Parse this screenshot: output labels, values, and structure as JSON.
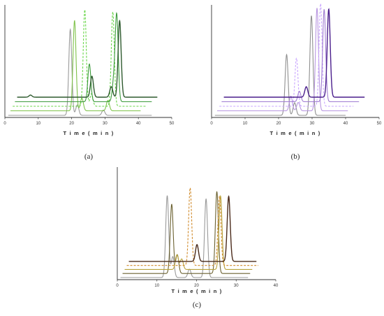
{
  "chart_data": [
    {
      "type": "line",
      "panel_label": "(a)",
      "xlabel": "T i m e  ( m i n )",
      "xlim": [
        0,
        50
      ],
      "x_ticks": [
        0,
        10,
        20,
        30,
        40,
        50
      ],
      "series": [
        {
          "color": "#9a9a9a",
          "dashed": false,
          "offset": 0.0,
          "x_end": 44,
          "peaks": [
            [
              19.6,
              0.82
            ],
            [
              21.7,
              0.1
            ],
            [
              29.5,
              0.05
            ]
          ]
        },
        {
          "color": "#7fc24a",
          "dashed": false,
          "offset": 0.045,
          "x_end": 40,
          "peaks": [
            [
              20.2,
              0.86
            ],
            [
              22.4,
              0.12
            ],
            [
              30.2,
              0.1
            ]
          ]
        },
        {
          "color": "#6ad64a",
          "dashed": true,
          "offset": 0.09,
          "x_end": 41,
          "peaks": [
            [
              22.6,
              0.92
            ],
            [
              24.6,
              0.12
            ],
            [
              31.0,
              0.9
            ]
          ]
        },
        {
          "color": "#3c9a3c",
          "dashed": false,
          "offset": 0.135,
          "x_end": 42,
          "peaks": [
            [
              23.3,
              0.36
            ],
            [
              30.6,
              0.18
            ],
            [
              31.5,
              0.82
            ]
          ]
        },
        {
          "color": "#2e5a2e",
          "dashed": false,
          "offset": 0.18,
          "x_end": 43,
          "peaks": [
            [
              5.0,
              0.02
            ],
            [
              23.4,
              0.2
            ],
            [
              29.2,
              0.1
            ],
            [
              31.7,
              0.73
            ]
          ]
        }
      ]
    },
    {
      "type": "line",
      "panel_label": "(b)",
      "xlabel": "T i m e  ( m i n )",
      "xlim": [
        0,
        50
      ],
      "x_ticks": [
        0,
        10,
        20,
        30,
        40,
        50
      ],
      "series": [
        {
          "color": "#8f8f8f",
          "dashed": false,
          "offset": 0.0,
          "x_end": 40,
          "peaks": [
            [
              22.4,
              0.58
            ],
            [
              24.8,
              0.12
            ],
            [
              29.8,
              0.95
            ]
          ]
        },
        {
          "color": "#b896e0",
          "dashed": false,
          "offset": 0.045,
          "x_end": 40,
          "peaks": [
            [
              23.0,
              0.14
            ],
            [
              25.2,
              0.08
            ],
            [
              30.8,
              0.98
            ]
          ]
        },
        {
          "color": "#c9a6ff",
          "dashed": true,
          "offset": 0.09,
          "x_end": 41,
          "peaks": [
            [
              24.0,
              0.46
            ],
            [
              31.2,
              0.98
            ]
          ]
        },
        {
          "color": "#a07cd2",
          "dashed": false,
          "offset": 0.135,
          "x_end": 42,
          "peaks": [
            [
              24.2,
              0.1
            ],
            [
              31.6,
              0.88
            ]
          ]
        },
        {
          "color": "#4a1e8c",
          "dashed": false,
          "offset": 0.18,
          "x_end": 43,
          "peaks": [
            [
              25.6,
              0.1
            ],
            [
              32.3,
              0.84
            ]
          ]
        }
      ]
    },
    {
      "type": "line",
      "panel_label": "(c)",
      "xlabel": "T i m e  ( m i n )",
      "xlim": [
        0,
        40
      ],
      "x_ticks": [
        0,
        10,
        20,
        30,
        40
      ],
      "series": [
        {
          "color": "#9a9a9a",
          "dashed": false,
          "offset": 0.0,
          "x_end": 33,
          "peaks": [
            [
              12.6,
              0.78
            ],
            [
              14.0,
              0.2
            ],
            [
              18.2,
              0.08
            ],
            [
              22.4,
              0.75
            ]
          ]
        },
        {
          "color": "#6b6130",
          "dashed": false,
          "offset": 0.04,
          "x_end": 33,
          "peaks": [
            [
              13.2,
              0.66
            ],
            [
              14.6,
              0.18
            ],
            [
              24.6,
              0.78
            ]
          ]
        },
        {
          "color": "#b8a23a",
          "dashed": false,
          "offset": 0.08,
          "x_end": 33,
          "peaks": [
            [
              14.0,
              0.14
            ],
            [
              15.2,
              0.1
            ],
            [
              25.0,
              0.7
            ]
          ]
        },
        {
          "color": "#d08a2a",
          "dashed": true,
          "offset": 0.12,
          "x_end": 34,
          "peaks": [
            [
              16.8,
              0.74
            ],
            [
              24.2,
              0.66
            ]
          ]
        },
        {
          "color": "#4a2a1a",
          "dashed": false,
          "offset": 0.16,
          "x_end": 33,
          "peaks": [
            [
              18.0,
              0.16
            ],
            [
              26.0,
              0.62
            ]
          ]
        }
      ]
    }
  ],
  "captions": [
    "(a)",
    "(b)",
    "(c)"
  ]
}
